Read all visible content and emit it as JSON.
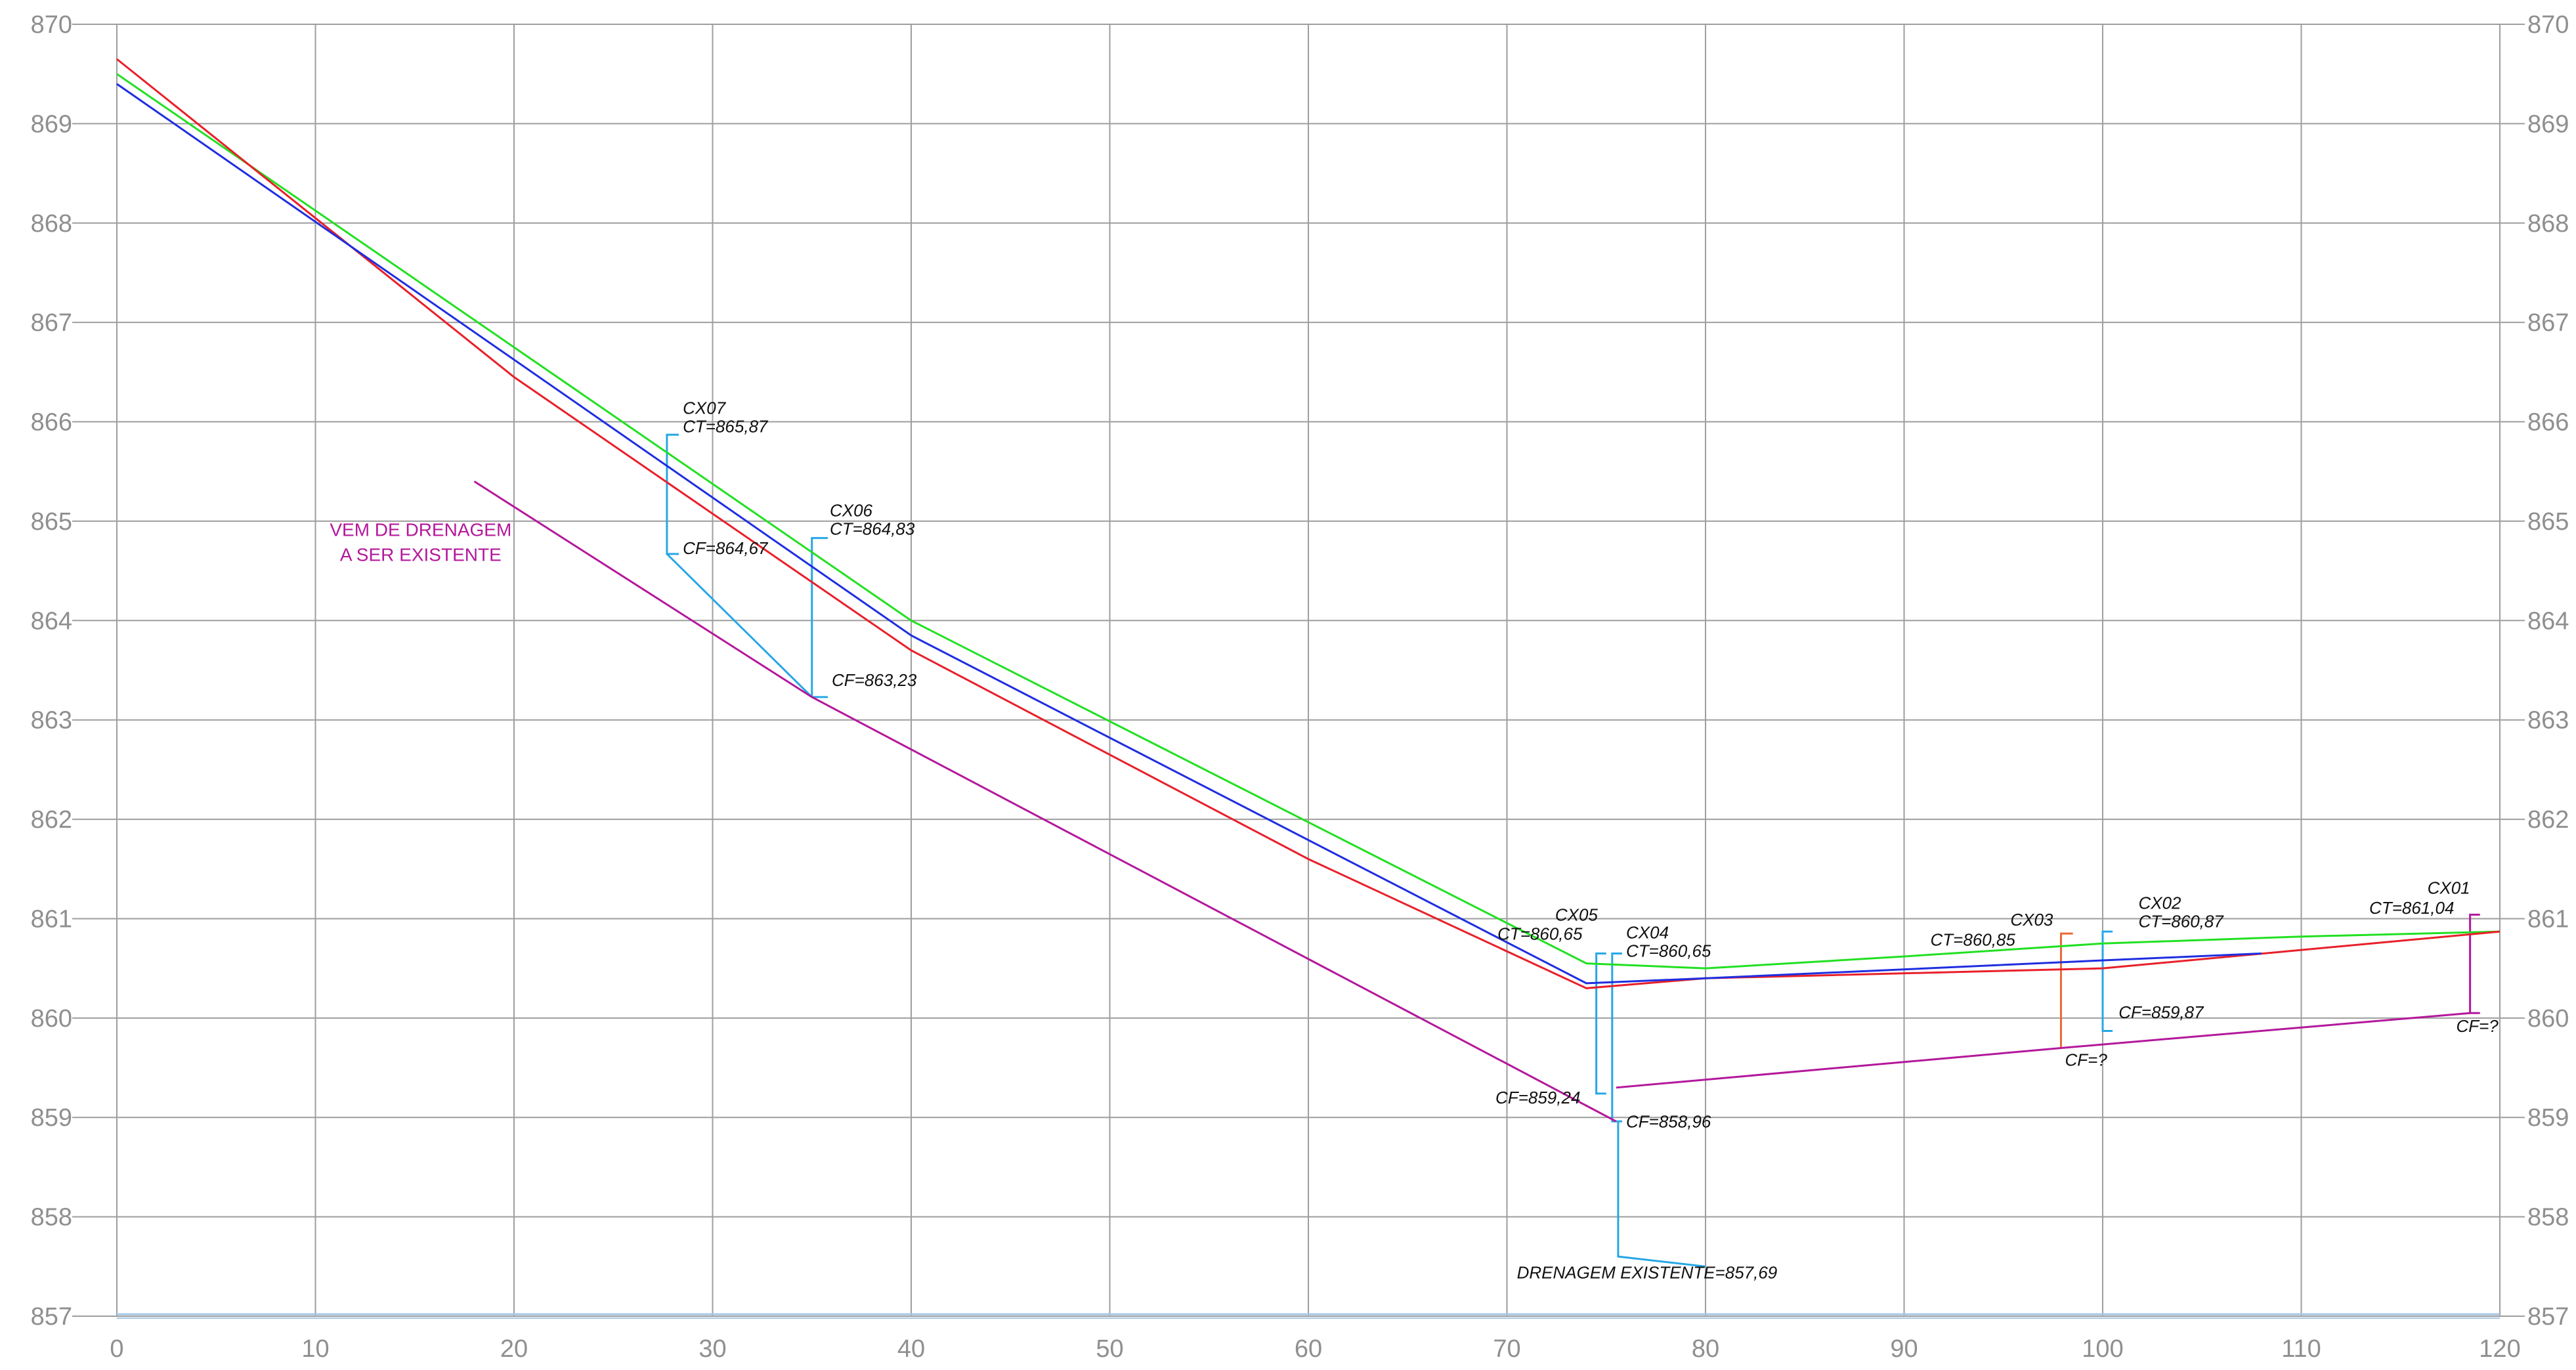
{
  "colors": {
    "grid": "#9e9e9e",
    "red": "#e8202a",
    "green": "#22e022",
    "blue": "#1f2ee0",
    "magenta": "#b4189b",
    "cyan": "#27a7e6",
    "orange": "#ea6a38",
    "axis_base": "#a6c8e6"
  },
  "chart_data": {
    "type": "line",
    "title": "",
    "xlabel": "",
    "ylabel": "",
    "xlim": [
      0,
      120
    ],
    "ylim": [
      857,
      870
    ],
    "x_ticks": [
      "0",
      "10",
      "20",
      "30",
      "40",
      "50",
      "60",
      "70",
      "80",
      "90",
      "100",
      "110",
      "120"
    ],
    "y_ticks": [
      "857",
      "858",
      "859",
      "860",
      "861",
      "862",
      "863",
      "864",
      "865",
      "866",
      "867",
      "868",
      "869",
      "870"
    ],
    "grid": true,
    "series": [
      {
        "color": "green",
        "points": [
          [
            0,
            869.5
          ],
          [
            40,
            864.0
          ],
          [
            74,
            860.55
          ],
          [
            80,
            860.5
          ],
          [
            90,
            860.62
          ],
          [
            100,
            860.75
          ],
          [
            110,
            860.82
          ],
          [
            120,
            860.87
          ]
        ]
      },
      {
        "color": "red",
        "points": [
          [
            0,
            869.65
          ],
          [
            20,
            866.45
          ],
          [
            40,
            863.7
          ],
          [
            60,
            861.6
          ],
          [
            74,
            860.3
          ],
          [
            80,
            860.4
          ],
          [
            100,
            860.5
          ],
          [
            120,
            860.87
          ]
        ]
      },
      {
        "color": "blue",
        "points": [
          [
            0,
            869.4
          ],
          [
            40,
            863.85
          ],
          [
            74,
            860.35
          ],
          [
            80,
            860.4
          ],
          [
            100,
            860.58
          ],
          [
            108,
            860.65
          ]
        ]
      },
      {
        "color": "magenta",
        "points": [
          [
            18,
            865.4
          ],
          [
            35,
            863.23
          ],
          [
            75.5,
            858.96
          ]
        ]
      },
      {
        "color": "magenta",
        "points": [
          [
            75.5,
            859.3
          ],
          [
            98,
            859.7
          ],
          [
            118.5,
            860.05
          ]
        ]
      }
    ],
    "annotations": [
      {
        "lines": [
          "CX07",
          "CT=865,87"
        ],
        "x": 28.5,
        "y": 866.08
      },
      {
        "lines": [
          "CF=864,67"
        ],
        "x": 28.5,
        "y": 864.67
      },
      {
        "lines": [
          "CX06",
          "CT=864,83"
        ],
        "x": 35.9,
        "y": 865.05
      },
      {
        "lines": [
          "CF=863,23"
        ],
        "x": 36,
        "y": 863.34
      },
      {
        "lines": [
          "CX05"
        ],
        "x": 73.5,
        "y": 860.98,
        "anchor": "middle"
      },
      {
        "lines": [
          "CT=860,65"
        ],
        "x": 73.8,
        "y": 860.79,
        "anchor": "end"
      },
      {
        "lines": [
          "CX04",
          "CT=860,65"
        ],
        "x": 76,
        "y": 860.8
      },
      {
        "lines": [
          "CF=859,24"
        ],
        "x": 73.7,
        "y": 859.14,
        "anchor": "end"
      },
      {
        "lines": [
          "CF=858,96"
        ],
        "x": 76,
        "y": 858.9
      },
      {
        "lines": [
          "DRENAGEM EXISTENTE=857,69"
        ],
        "x": 70.5,
        "y": 857.38
      },
      {
        "lines": [
          "CX03"
        ],
        "x": 97.5,
        "y": 860.93,
        "anchor": "end"
      },
      {
        "lines": [
          "CT=860,85"
        ],
        "x": 95.6,
        "y": 860.73,
        "anchor": "end"
      },
      {
        "lines": [
          "CX02",
          "CT=860,87"
        ],
        "x": 101.8,
        "y": 861.1
      },
      {
        "lines": [
          "CF=859,87"
        ],
        "x": 100.8,
        "y": 860.0
      },
      {
        "lines": [
          "CF=?"
        ],
        "x": 98.1,
        "y": 859.52
      },
      {
        "lines": [
          "CX01"
        ],
        "x": 118.5,
        "y": 861.25,
        "anchor": "end"
      },
      {
        "lines": [
          "CT=861,04"
        ],
        "x": 117.7,
        "y": 861.05,
        "anchor": "end"
      },
      {
        "lines": [
          "CF=?"
        ],
        "x": 117.8,
        "y": 859.86
      }
    ],
    "label": [
      "VEM DE DRENAGEM",
      "A SER EXISTENTE"
    ],
    "label_pos": {
      "x": 15.3,
      "y": 864.85
    }
  }
}
